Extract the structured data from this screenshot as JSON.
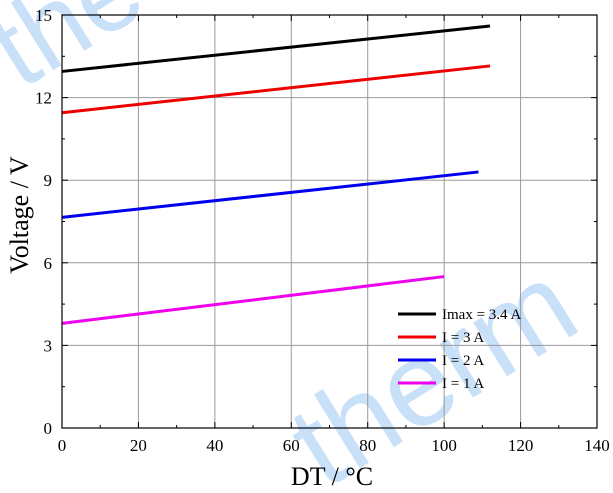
{
  "chart_data": {
    "type": "line",
    "xlabel": "DT / °C",
    "ylabel": "Voltage / V",
    "xlim": [
      0,
      140
    ],
    "ylim": [
      0,
      15
    ],
    "xticks": [
      0,
      20,
      40,
      60,
      80,
      100,
      120,
      140
    ],
    "yticks": [
      0,
      3,
      6,
      9,
      12,
      15
    ],
    "grid": true,
    "legend_position": "bottom-right",
    "watermark": [
      "the",
      "therm"
    ],
    "series": [
      {
        "name": "Imax = 3.4 A",
        "color": "#000000",
        "x": [
          0,
          112
        ],
        "y": [
          12.95,
          14.6
        ]
      },
      {
        "name": "I = 3 A",
        "color": "#ee0000",
        "x": [
          0,
          112
        ],
        "y": [
          11.45,
          13.15
        ]
      },
      {
        "name": "I = 2 A",
        "color": "#0000ee",
        "x": [
          0,
          109
        ],
        "y": [
          7.65,
          9.3
        ]
      },
      {
        "name": "I = 1 A",
        "color": "#ee00ee",
        "x": [
          0,
          100
        ],
        "y": [
          3.8,
          5.5
        ]
      }
    ]
  }
}
